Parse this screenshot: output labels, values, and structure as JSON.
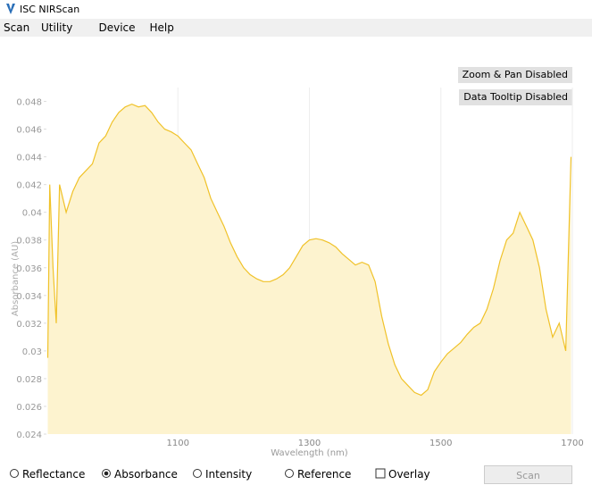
{
  "window": {
    "title": "ISC NIRScan"
  },
  "menu": [
    "Scan",
    "Utility",
    "Device",
    "Help"
  ],
  "toggles": [
    "Zoom & Pan Disabled",
    "Data Tooltip Disabled"
  ],
  "controls": {
    "options": [
      {
        "label": "Reflectance",
        "selected": false
      },
      {
        "label": "Absorbance",
        "selected": true
      },
      {
        "label": "Intensity",
        "selected": false
      },
      {
        "label": "Reference",
        "selected": false
      }
    ],
    "overlay": {
      "label": "Overlay",
      "checked": false
    },
    "scan_button": {
      "label": "Scan",
      "enabled": false
    }
  },
  "chart_data": {
    "type": "area",
    "x_label": "Wavelength (nm)",
    "y_label": "Absorbance (AU)",
    "color": "#f0c229",
    "fill": "#fdf3cf",
    "grid": true,
    "xlim": [
      900,
      1700
    ],
    "ylim": [
      0.024,
      0.049
    ],
    "xticks": [
      1100,
      1300,
      1500,
      1700
    ],
    "yticks": [
      0.024,
      0.026,
      0.028,
      0.03,
      0.032,
      0.034,
      0.036,
      0.038,
      0.04,
      0.042,
      0.044,
      0.046,
      0.048
    ],
    "x": [
      902,
      905,
      910,
      915,
      920,
      930,
      940,
      950,
      960,
      970,
      980,
      990,
      1000,
      1010,
      1020,
      1030,
      1040,
      1050,
      1060,
      1070,
      1080,
      1090,
      1100,
      1110,
      1120,
      1130,
      1140,
      1150,
      1160,
      1170,
      1180,
      1190,
      1200,
      1210,
      1220,
      1230,
      1240,
      1250,
      1260,
      1270,
      1280,
      1290,
      1300,
      1310,
      1320,
      1330,
      1340,
      1350,
      1360,
      1370,
      1380,
      1390,
      1400,
      1410,
      1420,
      1430,
      1440,
      1450,
      1460,
      1470,
      1480,
      1490,
      1500,
      1510,
      1520,
      1530,
      1540,
      1550,
      1560,
      1570,
      1580,
      1590,
      1600,
      1610,
      1620,
      1630,
      1640,
      1650,
      1660,
      1670,
      1680,
      1690,
      1698
    ],
    "values": [
      0.0295,
      0.042,
      0.036,
      0.032,
      0.042,
      0.04,
      0.0415,
      0.0425,
      0.043,
      0.0435,
      0.045,
      0.0455,
      0.0465,
      0.0472,
      0.0476,
      0.0478,
      0.0476,
      0.0477,
      0.0472,
      0.0465,
      0.046,
      0.0458,
      0.0455,
      0.045,
      0.0445,
      0.0435,
      0.0425,
      0.041,
      0.04,
      0.039,
      0.0378,
      0.0368,
      0.036,
      0.0355,
      0.0352,
      0.035,
      0.035,
      0.0352,
      0.0355,
      0.036,
      0.0368,
      0.0376,
      0.038,
      0.0381,
      0.038,
      0.0378,
      0.0375,
      0.037,
      0.0366,
      0.0362,
      0.0364,
      0.0362,
      0.035,
      0.0325,
      0.0305,
      0.029,
      0.028,
      0.0275,
      0.027,
      0.0268,
      0.0272,
      0.0285,
      0.0292,
      0.0298,
      0.0302,
      0.0306,
      0.0312,
      0.0317,
      0.032,
      0.033,
      0.0345,
      0.0365,
      0.038,
      0.0385,
      0.04,
      0.039,
      0.038,
      0.036,
      0.033,
      0.031,
      0.032,
      0.03,
      0.044
    ]
  }
}
